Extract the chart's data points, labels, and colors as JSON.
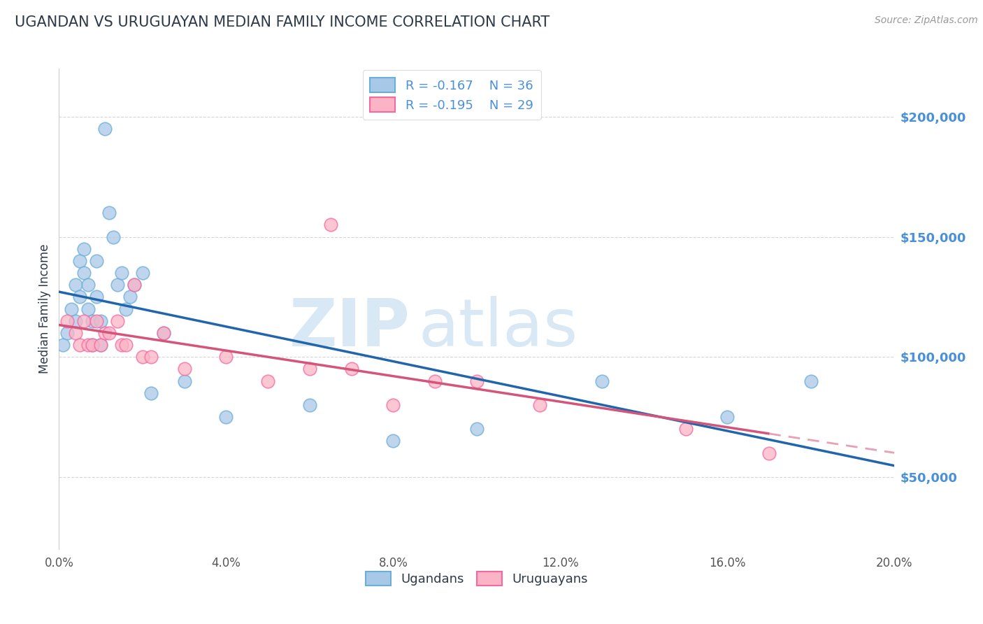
{
  "title": "UGANDAN VS URUGUAYAN MEDIAN FAMILY INCOME CORRELATION CHART",
  "source_text": "Source: ZipAtlas.com",
  "ylabel": "Median Family Income",
  "xlim": [
    0.0,
    0.2
  ],
  "ylim": [
    20000,
    220000
  ],
  "yticks": [
    50000,
    100000,
    150000,
    200000
  ],
  "ytick_labels": [
    "$50,000",
    "$100,000",
    "$150,000",
    "$200,000"
  ],
  "xticks": [
    0.0,
    0.04,
    0.08,
    0.12,
    0.16,
    0.2
  ],
  "xtick_labels": [
    "0.0%",
    "4.0%",
    "8.0%",
    "12.0%",
    "16.0%",
    "20.0%"
  ],
  "ugandan_x": [
    0.001,
    0.002,
    0.003,
    0.004,
    0.004,
    0.005,
    0.005,
    0.006,
    0.006,
    0.007,
    0.007,
    0.008,
    0.008,
    0.009,
    0.009,
    0.01,
    0.01,
    0.011,
    0.012,
    0.013,
    0.014,
    0.015,
    0.016,
    0.017,
    0.018,
    0.02,
    0.022,
    0.025,
    0.03,
    0.04,
    0.06,
    0.08,
    0.1,
    0.13,
    0.16,
    0.18
  ],
  "ugandan_y": [
    105000,
    110000,
    120000,
    115000,
    130000,
    125000,
    140000,
    135000,
    145000,
    120000,
    130000,
    115000,
    105000,
    140000,
    125000,
    115000,
    105000,
    195000,
    160000,
    150000,
    130000,
    135000,
    120000,
    125000,
    130000,
    135000,
    85000,
    110000,
    90000,
    75000,
    80000,
    65000,
    70000,
    90000,
    75000,
    90000
  ],
  "uruguayan_x": [
    0.002,
    0.004,
    0.005,
    0.006,
    0.007,
    0.008,
    0.009,
    0.01,
    0.011,
    0.012,
    0.014,
    0.015,
    0.016,
    0.018,
    0.02,
    0.022,
    0.025,
    0.03,
    0.04,
    0.05,
    0.06,
    0.065,
    0.07,
    0.08,
    0.09,
    0.1,
    0.115,
    0.15,
    0.17
  ],
  "uruguayan_y": [
    115000,
    110000,
    105000,
    115000,
    105000,
    105000,
    115000,
    105000,
    110000,
    110000,
    115000,
    105000,
    105000,
    130000,
    100000,
    100000,
    110000,
    95000,
    100000,
    90000,
    95000,
    155000,
    95000,
    80000,
    90000,
    90000,
    80000,
    70000,
    60000
  ],
  "ugandan_R": -0.167,
  "ugandan_N": 36,
  "uruguayan_R": -0.195,
  "uruguayan_N": 29,
  "blue_scatter_color": "#a8c8e8",
  "blue_edge_color": "#6baed6",
  "pink_scatter_color": "#fbb4c5",
  "pink_edge_color": "#f768a1",
  "blue_line_color": "#2166ac",
  "pink_line_color": "#d4547a",
  "pink_dash_color": "#e8a0b4",
  "grid_color": "#cccccc",
  "title_color": "#2d3a4a",
  "axis_label_color": "#2d3a4a",
  "tick_color": "#4a90d9",
  "watermark_color": "#d8e8f5",
  "background_color": "#ffffff",
  "legend_label_color": "#4a90d9"
}
